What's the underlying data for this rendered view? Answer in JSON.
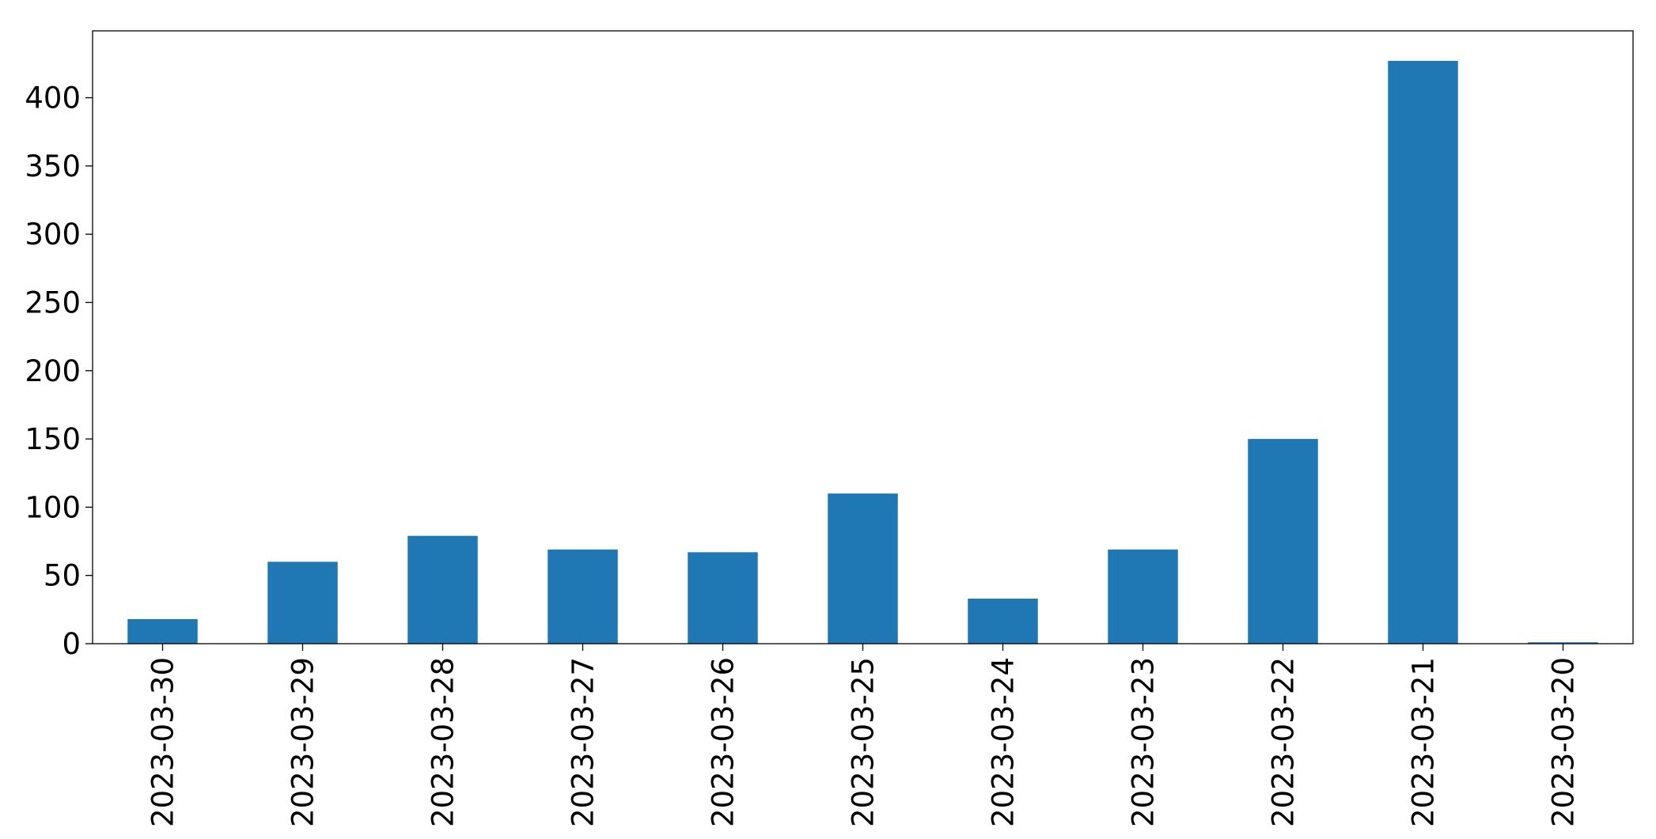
{
  "chart_data": {
    "type": "bar",
    "categories": [
      "2023-03-30",
      "2023-03-29",
      "2023-03-28",
      "2023-03-27",
      "2023-03-26",
      "2023-03-25",
      "2023-03-24",
      "2023-03-23",
      "2023-03-22",
      "2023-03-21",
      "2023-03-20"
    ],
    "values": [
      18,
      60,
      79,
      69,
      67,
      110,
      33,
      69,
      150,
      427,
      1
    ],
    "title": "",
    "xlabel": "",
    "ylabel": "",
    "ylim": [
      0,
      449
    ],
    "yticks": [
      0,
      50,
      100,
      150,
      200,
      250,
      300,
      350,
      400
    ],
    "ytick_labels": [
      "0",
      "50",
      "100",
      "150",
      "200",
      "250",
      "300",
      "350",
      "400"
    ],
    "bar_color": "#1f77b4",
    "grid": false,
    "legend": "none"
  }
}
